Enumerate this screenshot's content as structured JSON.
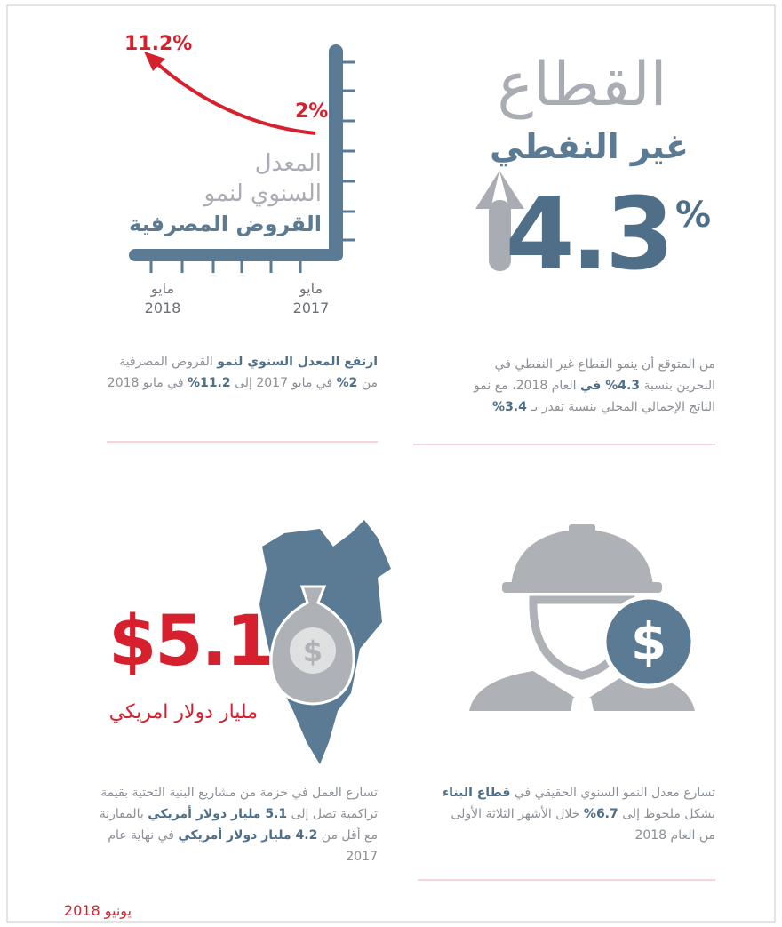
{
  "panels": {
    "non_oil": {
      "title": "القطاع",
      "subtitle": "غير النفطي",
      "value": "4.3",
      "unit": "%",
      "text": [
        {
          "text": "من المتوقع أن ينمو القطاع غير النفطي في البحرين بنسبة ",
          "bold": false
        },
        {
          "text": "4.3% في",
          "bold": true
        },
        {
          "text": " العام 2018، مع نمو الناتج الإجمالي المحلي بنسبة تقدر بـ ",
          "bold": false
        },
        {
          "text": "3.4%",
          "bold": true
        }
      ]
    },
    "bank_loans": {
      "end_label": "11.2%",
      "start_label": "2%",
      "title_lines": [
        "المعدل",
        "السنوي لنمو",
        "القروض المصرفية"
      ],
      "x_labels": [
        {
          "month": "مايو",
          "year": "2018"
        },
        {
          "month": "مايو",
          "year": "2017"
        }
      ],
      "text": [
        {
          "text": "ارتفع المعدل السنوي لنمو",
          "bold": true
        },
        {
          "text": " القروض المصرفية من ",
          "bold": false
        },
        {
          "text": "2%",
          "bold": true
        },
        {
          "text": " في مايو 2017 إلى ",
          "bold": false
        },
        {
          "text": "11.2%",
          "bold": true
        },
        {
          "text": " في مايو 2018",
          "bold": false
        }
      ]
    },
    "construction": {
      "icon_symbol": "$",
      "text": [
        {
          "text": "تسارع معدل النمو السنوي الحقيقي في ",
          "bold": false
        },
        {
          "text": "قطاع البناء",
          "bold": true
        },
        {
          "text": " بشكل ملحوظ إلى ",
          "bold": false
        },
        {
          "text": "6.7%",
          "bold": true
        },
        {
          "text": " خلال الأشهر الثلاثة الأولى من العام 2018",
          "bold": false
        }
      ]
    },
    "infrastructure": {
      "icon_symbol": "$",
      "value": "$5.1",
      "caption": "مليار دولار امريكي",
      "text": [
        {
          "text": "تسارع العمل في حزمة من مشاريع البنية التحتية بقيمة تراكمية تصل إلى ",
          "bold": false
        },
        {
          "text": "5.1 مليار دولار أمريكي",
          "bold": true
        },
        {
          "text": " بالمقارنة مع أقل من ",
          "bold": false
        },
        {
          "text": "4.2 مليار دولار أمريكي",
          "bold": true
        },
        {
          "text": " في نهاية عام 2017",
          "bold": false
        }
      ]
    }
  },
  "footer": "يونيو 2018"
}
